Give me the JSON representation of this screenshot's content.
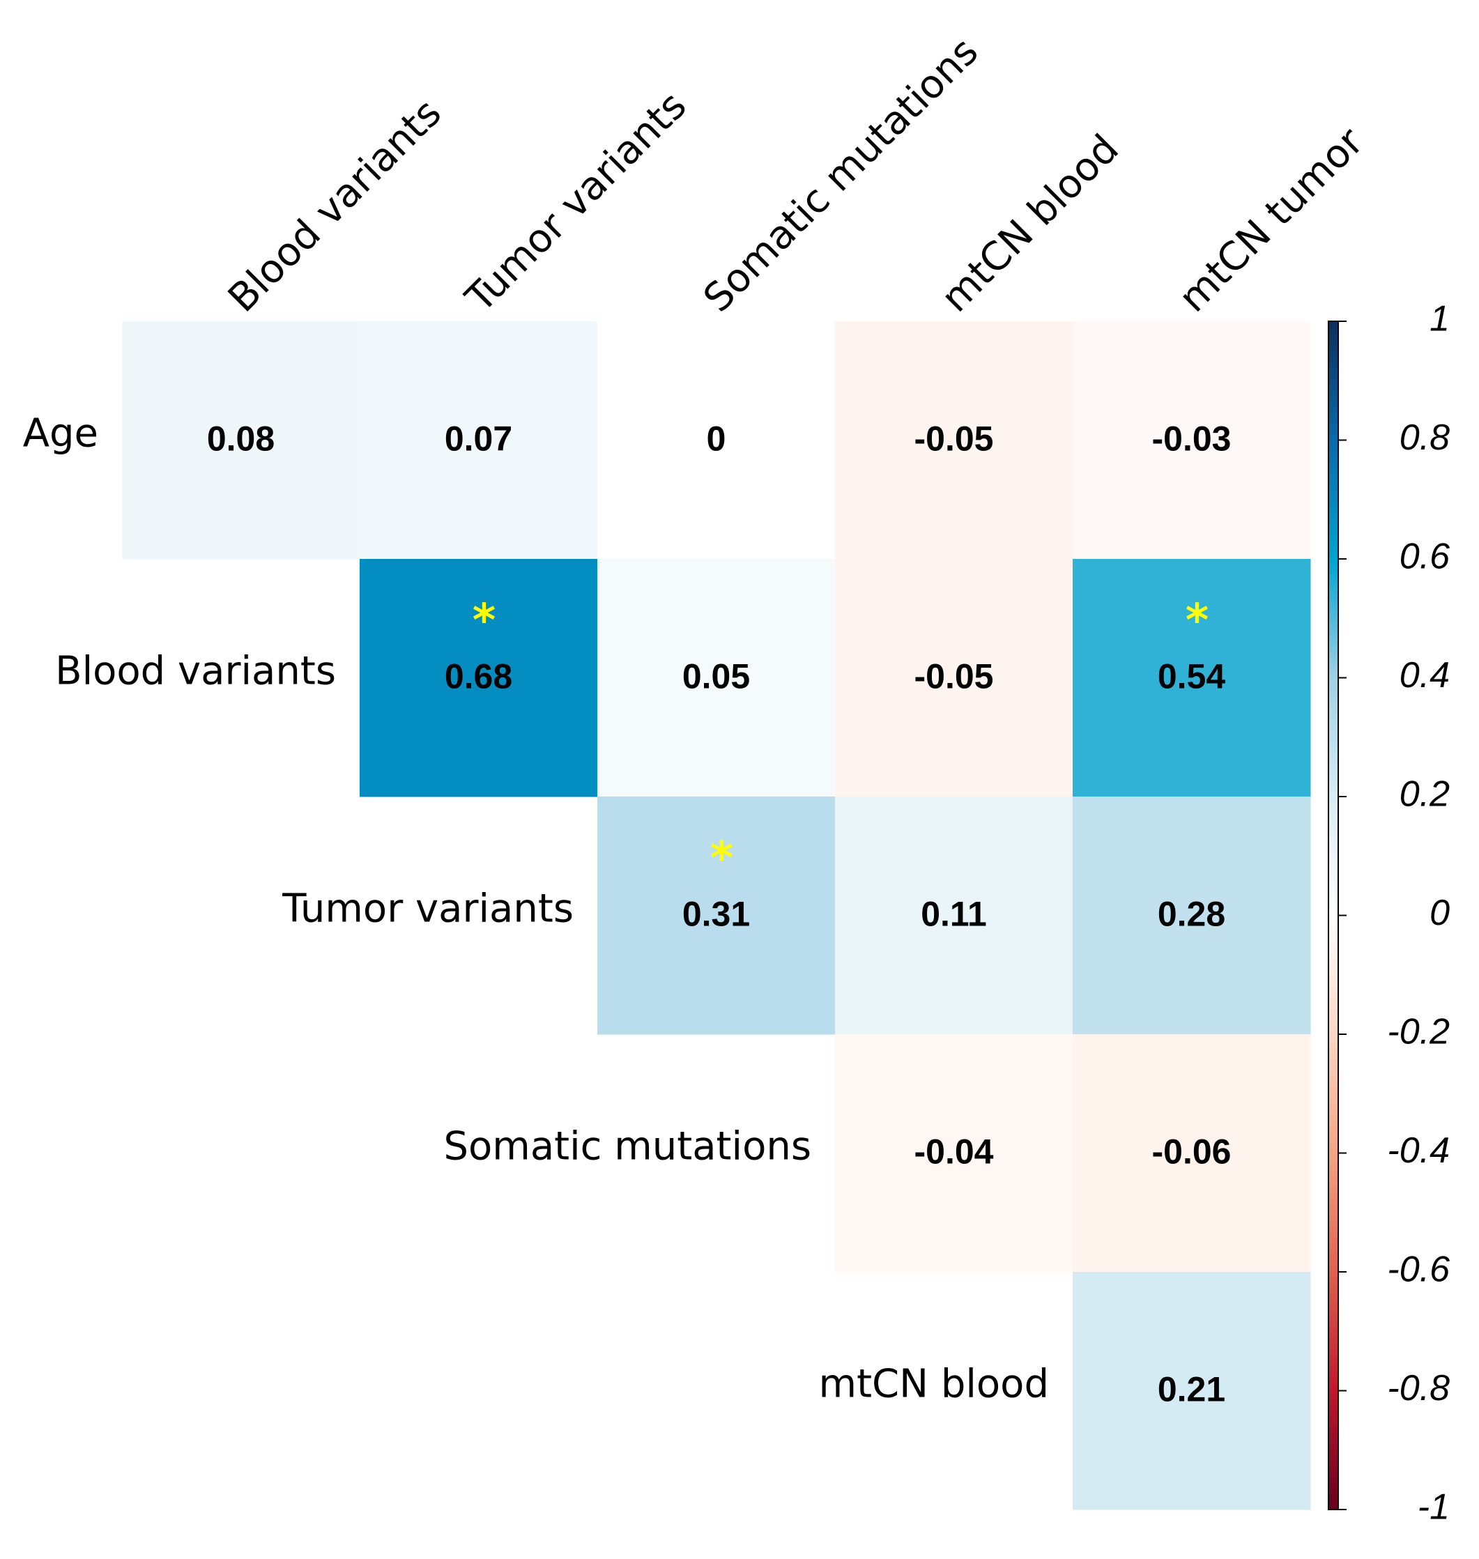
{
  "chart_data": {
    "type": "heatmap",
    "columns": [
      "Blood variants",
      "Tumor variants",
      "Somatic mutations",
      "mtCN blood",
      "mtCN tumor"
    ],
    "rows": [
      "Age",
      "Blood variants",
      "Tumor variants",
      "Somatic mutations",
      "mtCN blood"
    ],
    "values": [
      [
        0.08,
        0.07,
        0,
        -0.05,
        -0.03
      ],
      [
        null,
        0.68,
        0.05,
        -0.05,
        0.54
      ],
      [
        null,
        null,
        0.31,
        0.11,
        0.28
      ],
      [
        null,
        null,
        null,
        -0.04,
        -0.06
      ],
      [
        null,
        null,
        null,
        null,
        0.21
      ]
    ],
    "stars": [
      [
        null,
        null,
        null,
        null,
        null
      ],
      [
        null,
        "*",
        null,
        null,
        "*"
      ],
      [
        null,
        null,
        "*",
        null,
        null
      ],
      [
        null,
        null,
        null,
        null,
        null
      ],
      [
        null,
        null,
        null,
        null,
        null
      ]
    ],
    "zlim": [
      -1,
      1
    ],
    "zticks": [
      1,
      0.8,
      0.6,
      0.4,
      0.2,
      0,
      -0.2,
      -0.4,
      -0.6,
      -0.8,
      -1
    ],
    "colormap": [
      "#67001f",
      "#c0182e",
      "#e0614f",
      "#f4a582",
      "#fbd7c4",
      "#ffffff",
      "#d8ecf5",
      "#a0d1e4",
      "#00a3d0",
      "#0a6ba9",
      "#0c2f5c"
    ]
  }
}
